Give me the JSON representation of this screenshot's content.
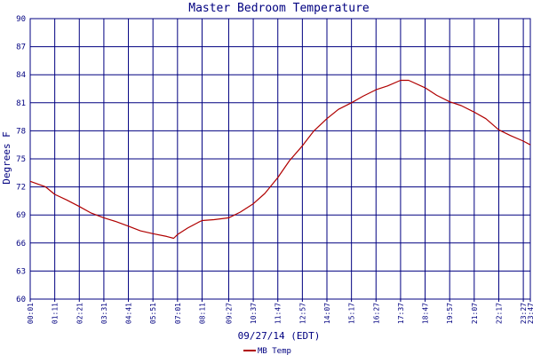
{
  "chart_data": {
    "type": "line",
    "title": "Master Bedroom Temperature",
    "xlabel": "09/27/14 (EDT)",
    "ylabel": "Degrees F",
    "ylim": [
      60,
      90
    ],
    "yticks": [
      60,
      63,
      66,
      69,
      72,
      75,
      78,
      81,
      84,
      87,
      90
    ],
    "xlim": [
      "00:01",
      "23:47"
    ],
    "xticks": [
      "00:01",
      "01:11",
      "02:21",
      "03:31",
      "04:41",
      "05:51",
      "07:01",
      "08:11",
      "09:27",
      "10:37",
      "11:47",
      "12:57",
      "14:07",
      "15:17",
      "16:27",
      "17:37",
      "18:47",
      "19:57",
      "21:07",
      "22:17",
      "23:27",
      "23:47"
    ],
    "grid": true,
    "legend_position": "bottom-left",
    "colors": {
      "series": "#b00000",
      "grid": "#000080",
      "axes": "#000080",
      "text": "#000080"
    },
    "series": [
      {
        "name": "MB Temp",
        "x": [
          "00:01",
          "00:45",
          "01:11",
          "01:45",
          "02:21",
          "02:55",
          "03:31",
          "04:05",
          "04:41",
          "05:15",
          "05:51",
          "06:30",
          "06:50",
          "07:01",
          "07:30",
          "08:00",
          "08:11",
          "08:45",
          "09:27",
          "10:00",
          "10:37",
          "11:10",
          "11:47",
          "12:20",
          "12:57",
          "13:30",
          "14:07",
          "14:40",
          "15:17",
          "15:50",
          "16:27",
          "17:00",
          "17:37",
          "18:00",
          "18:47",
          "19:20",
          "19:57",
          "20:30",
          "21:07",
          "21:40",
          "22:17",
          "22:50",
          "23:27",
          "23:47"
        ],
        "y": [
          72.6,
          72.0,
          71.2,
          70.6,
          69.9,
          69.2,
          68.7,
          68.3,
          67.8,
          67.3,
          67.0,
          66.7,
          66.5,
          66.9,
          67.6,
          68.2,
          68.4,
          68.5,
          68.7,
          69.3,
          70.2,
          71.3,
          73.0,
          74.8,
          76.4,
          78.0,
          79.3,
          80.3,
          81.0,
          81.7,
          82.4,
          82.8,
          83.4,
          83.4,
          82.6,
          81.8,
          81.1,
          80.7,
          80.0,
          79.3,
          78.1,
          77.5,
          76.9,
          76.5
        ]
      }
    ]
  }
}
